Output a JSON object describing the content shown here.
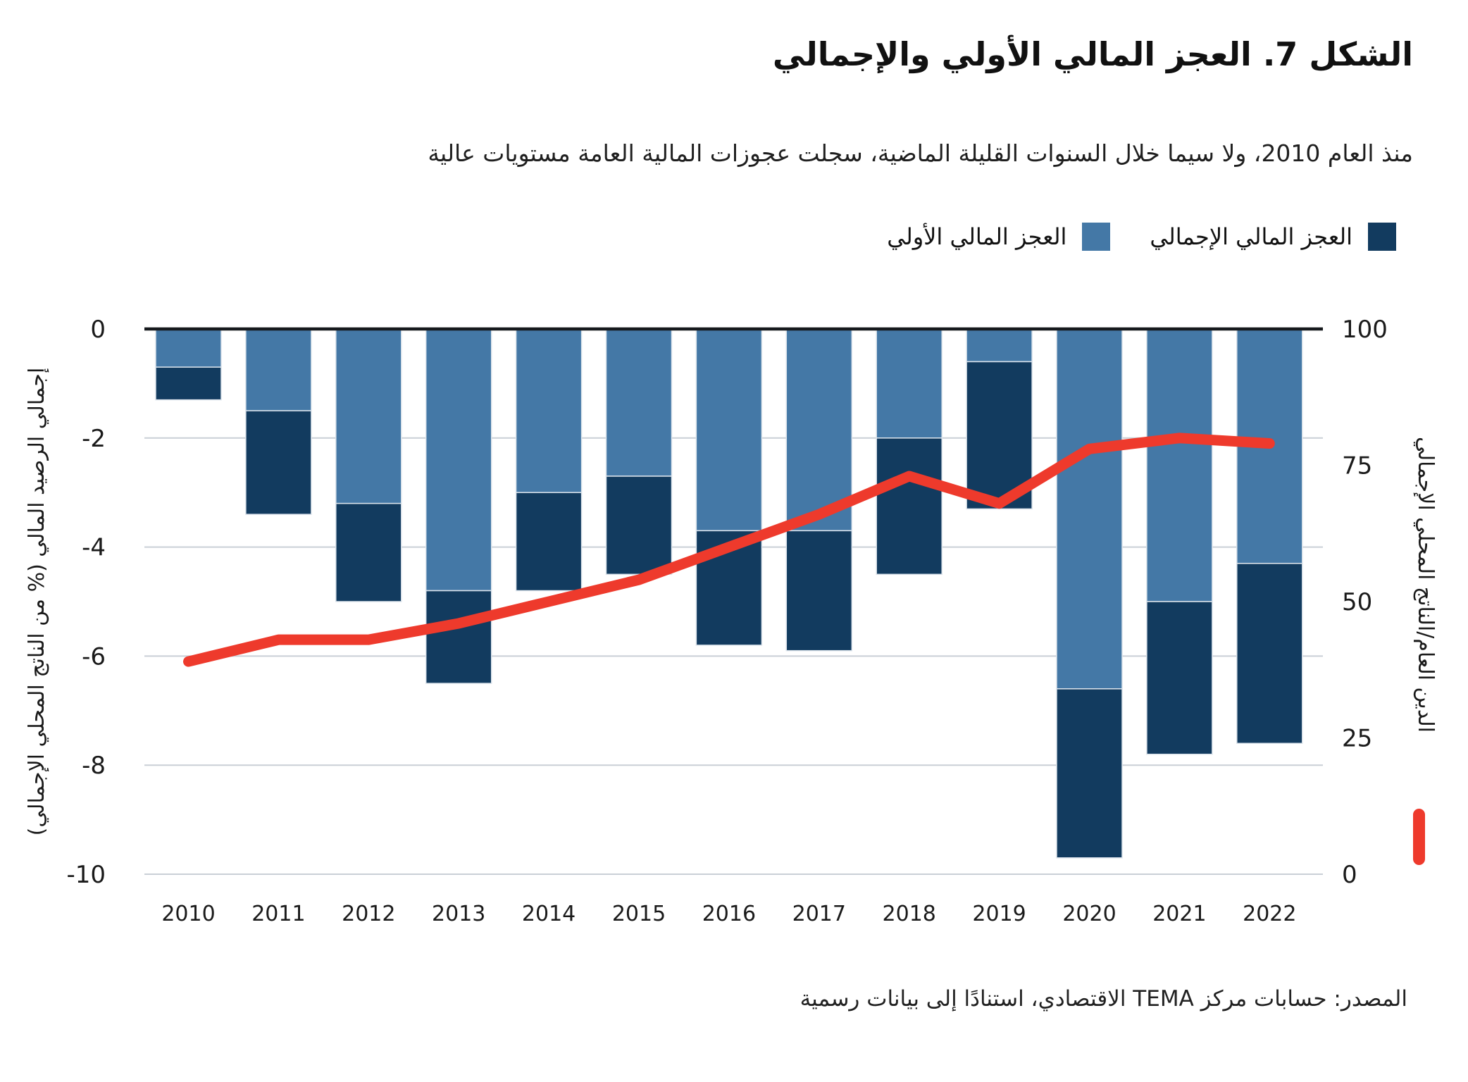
{
  "figure": {
    "title": "الشكل 7. العجز المالي الأولي والإجمالي",
    "subtitle": "منذ العام 2010، ولا سيما خلال السنوات القليلة الماضية، سجلت عجوزات المالية العامة مستويات عالية",
    "source": "المصدر: حسابات مركز TEMA الاقتصادي، استنادًا إلى بيانات رسمية"
  },
  "legend": {
    "overall_label": "العجز المالي الإجمالي",
    "primary_label": "العجز المالي الأولي"
  },
  "colors": {
    "primary_bar": "#4478A6",
    "overall_bar": "#123B5F",
    "debt_line": "#EE3A2C",
    "gridline": "#C9CFD6",
    "zero_axis": "#16191D",
    "text": "#1A1A1A"
  },
  "chart_data": {
    "type": "bar",
    "subtype": "stacked-bars-with-line",
    "categories": [
      "2010",
      "2011",
      "2012",
      "2013",
      "2014",
      "2015",
      "2016",
      "2017",
      "2018",
      "2019",
      "2020",
      "2021",
      "2022"
    ],
    "series": [
      {
        "name": "العجز المالي الأولي",
        "type": "bar",
        "axis": "left",
        "color": "#4478A6",
        "values": [
          -0.7,
          -1.5,
          -3.2,
          -4.8,
          -3.0,
          -2.7,
          -3.7,
          -3.7,
          -2.0,
          -0.6,
          -6.6,
          -5.0,
          -4.3
        ]
      },
      {
        "name": "العجز المالي الإجمالي",
        "type": "bar",
        "axis": "left",
        "color": "#123B5F",
        "values": [
          -1.3,
          -3.4,
          -5.0,
          -6.5,
          -4.8,
          -4.5,
          -5.8,
          -5.9,
          -4.5,
          -3.3,
          -9.7,
          -7.8,
          -7.6
        ]
      },
      {
        "name": "الدين العام/الناتج المحلي الإجمالي",
        "type": "line",
        "axis": "right",
        "color": "#EE3A2C",
        "values": [
          39,
          43,
          43,
          46,
          50,
          54,
          60,
          66,
          73,
          68,
          78,
          80,
          79
        ]
      }
    ],
    "left_axis": {
      "title": "إجمالي الرصيد المالي (% من الناتج المحلي الإجمالي)",
      "ticks": [
        0,
        -2,
        -4,
        -6,
        -8,
        -10
      ],
      "range": [
        0,
        -10
      ]
    },
    "right_axis": {
      "title": "الدين العام/الناتج المحلي الإجمالي",
      "ticks": [
        100,
        75,
        50,
        25,
        0
      ],
      "range": [
        0,
        100
      ]
    },
    "grid": true,
    "legend_position": "top-right",
    "notes": "stacked deficit bars: dark overall segment extends from primary value down to overall value"
  }
}
